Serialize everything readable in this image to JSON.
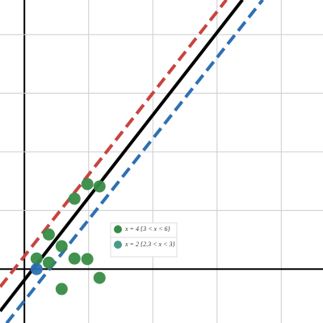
{
  "chart_data": {
    "type": "scatter",
    "xlim": [
      -0.38,
      4.65
    ],
    "ylim": [
      -0.92,
      4.59
    ],
    "xticks": [
      0,
      1,
      2,
      3,
      4
    ],
    "yticks": [
      0,
      1,
      2,
      3,
      4
    ],
    "grid": true,
    "lines": [
      {
        "color": "#c74440",
        "dash": true,
        "x": [
          -0.377,
          3.145
        ],
        "y": [
          -0.303,
          4.593
        ]
      },
      {
        "color": "#000000",
        "dash": false,
        "x": [
          -0.377,
          3.396
        ],
        "y": [
          -0.717,
          4.593
        ]
      },
      {
        "color": "#2d70b3",
        "dash": true,
        "x": [
          -0.277,
          3.711
        ],
        "y": [
          -0.924,
          4.593
        ]
      }
    ],
    "series": [
      {
        "color": "#388c46",
        "x": [
          0.19,
          0.38,
          0.38,
          0.58,
          0.58,
          0.78,
          0.78,
          0.98,
          0.98,
          1.17,
          1.17
        ],
        "y": [
          0.18,
          0.11,
          0.59,
          0.39,
          -0.34,
          0.18,
          1.2,
          1.45,
          0.17,
          1.41,
          -0.15
        ]
      },
      {
        "color": "#2d70b3",
        "x": [
          0.19
        ],
        "y": [
          0.0
        ]
      }
    ],
    "legend": [
      {
        "label": "x = 4 {3 < x < 6}",
        "color": "#388c46"
      },
      {
        "label": "x = 2 {2.3 < x < 3}",
        "color": "#4a9a8a"
      }
    ]
  }
}
